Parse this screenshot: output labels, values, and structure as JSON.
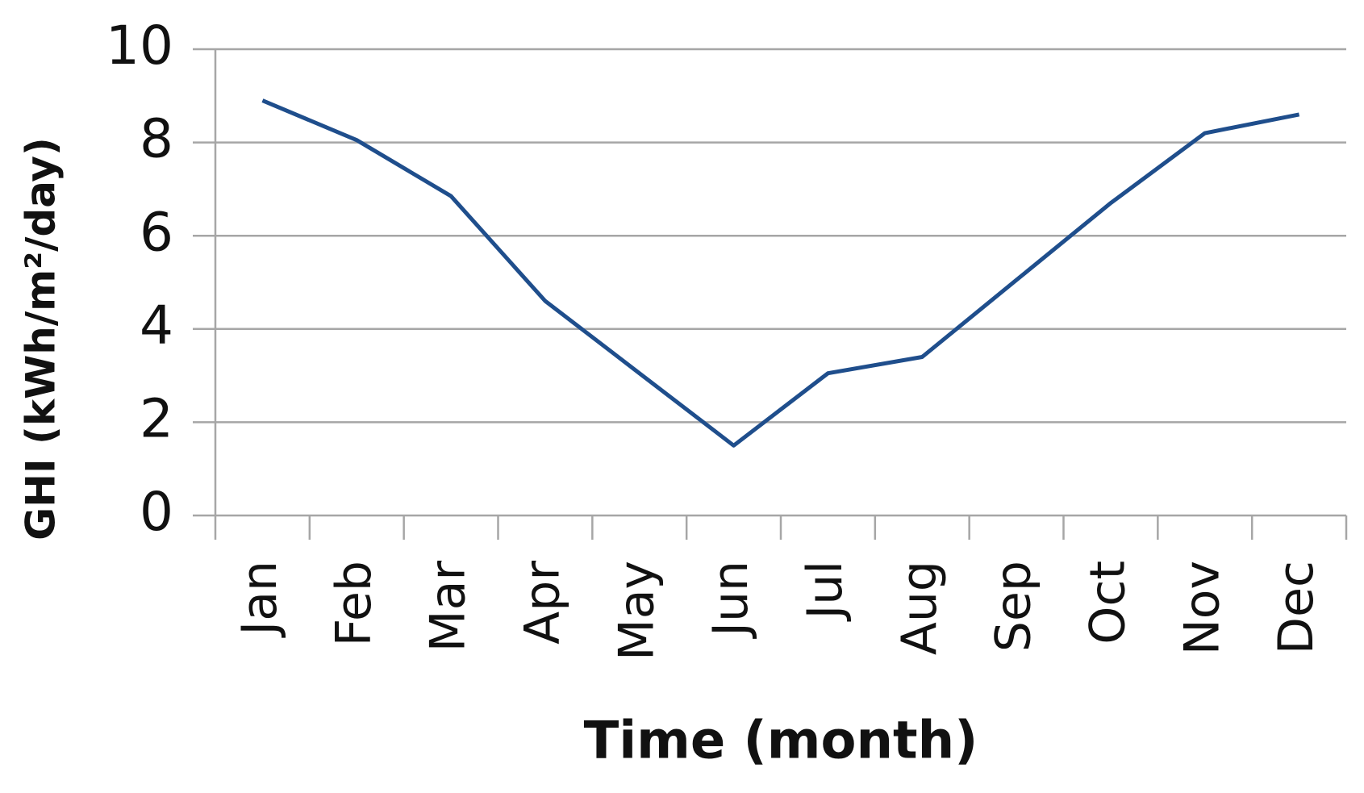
{
  "chart_data": {
    "type": "line",
    "x_label": "Time (month)",
    "y_label": "GHI (kWh/m²/day)",
    "categories": [
      "Jan",
      "Feb",
      "Mar",
      "Apr",
      "May",
      "Jun",
      "Jul",
      "Aug",
      "Sep",
      "Oct",
      "Nov",
      "Dec"
    ],
    "series": [
      {
        "name": "GHI",
        "color": "#1f4e8c",
        "values": [
          8.9,
          8.05,
          6.85,
          4.6,
          3.05,
          1.5,
          3.05,
          3.4,
          5.05,
          6.7,
          8.2,
          8.6
        ]
      }
    ],
    "ylim": [
      0,
      10
    ],
    "yticks": [
      0,
      2,
      4,
      6,
      8,
      10
    ],
    "grid": true
  }
}
